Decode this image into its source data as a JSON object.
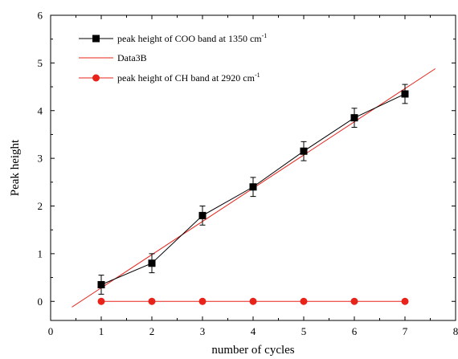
{
  "chart_data": {
    "type": "line",
    "title": "",
    "xlabel": "number of cycles",
    "ylabel": "Peak height",
    "xlim": [
      0,
      8
    ],
    "ylim": [
      -0.4,
      6
    ],
    "x_ticks": [
      0,
      1,
      2,
      3,
      4,
      5,
      6,
      7,
      8
    ],
    "y_ticks": [
      0,
      1,
      2,
      3,
      4,
      5,
      6
    ],
    "grid": false,
    "legend_position": "top-left",
    "series": [
      {
        "name": "peak height of COO band at 1350 cm",
        "name_superscript": "-1",
        "marker": "square",
        "color": "#000000",
        "x": [
          1,
          2,
          3,
          4,
          5,
          6,
          7
        ],
        "y": [
          0.35,
          0.8,
          1.8,
          2.4,
          3.15,
          3.85,
          4.35
        ],
        "error": [
          0.2,
          0.2,
          0.2,
          0.2,
          0.2,
          0.2,
          0.2
        ]
      },
      {
        "name": "Data3B",
        "marker": "none",
        "color": "#e8231a",
        "x": [
          0.42,
          7.6
        ],
        "y": [
          -0.12,
          4.88
        ]
      },
      {
        "name": "peak height of CH band at 2920 cm",
        "name_superscript": "-1",
        "marker": "circle",
        "color": "#e8231a",
        "x": [
          1,
          2,
          3,
          4,
          5,
          6,
          7
        ],
        "y": [
          0,
          0,
          0,
          0,
          0,
          0,
          0
        ]
      }
    ]
  }
}
